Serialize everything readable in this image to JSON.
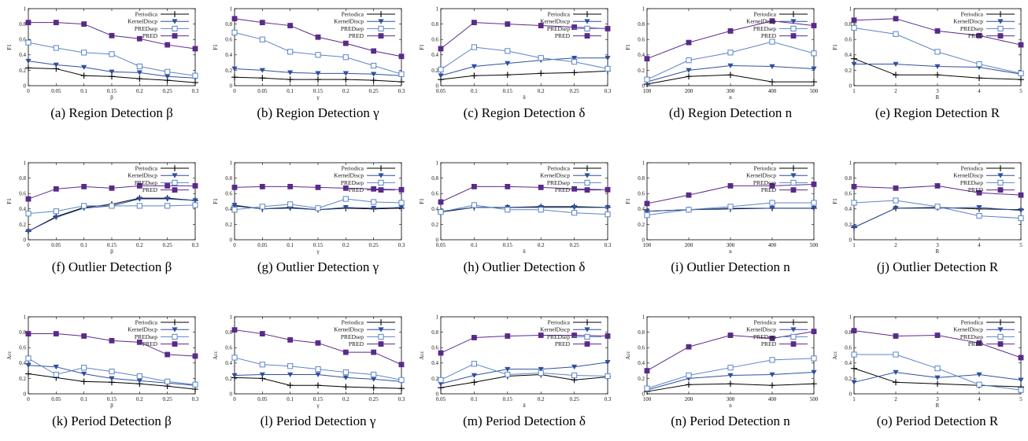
{
  "chart_data": [
    {
      "type": "line",
      "caption": "(a) Region Detection β",
      "xlabel": "β",
      "ylabel": "F1",
      "x": [
        0,
        0.05,
        0.1,
        0.15,
        0.2,
        0.25,
        0.3
      ],
      "xticks": [
        "0",
        "0.05",
        "0.1",
        "0.15",
        "0.2",
        "0.25",
        "0.3"
      ],
      "xlim": [
        0,
        0.3
      ],
      "ylim": [
        0,
        1
      ],
      "series": [
        {
          "name": "Periodica",
          "values": [
            0.23,
            0.22,
            0.13,
            0.12,
            0.09,
            0.07,
            0.04
          ]
        },
        {
          "name": "KernelDiscp",
          "values": [
            0.32,
            0.27,
            0.24,
            0.18,
            0.17,
            0.12,
            0.1
          ]
        },
        {
          "name": "PREDsep",
          "values": [
            0.56,
            0.49,
            0.43,
            0.41,
            0.25,
            0.18,
            0.13
          ]
        },
        {
          "name": "PRED",
          "values": [
            0.82,
            0.82,
            0.8,
            0.65,
            0.61,
            0.53,
            0.48
          ]
        }
      ]
    },
    {
      "type": "line",
      "caption": "(b) Region Detection γ",
      "xlabel": "γ",
      "ylabel": "F1",
      "x": [
        0,
        0.05,
        0.1,
        0.15,
        0.2,
        0.25,
        0.3
      ],
      "xticks": [
        "0",
        "0.05",
        "0.1",
        "0.15",
        "0.2",
        "0.25",
        "0.3"
      ],
      "xlim": [
        0,
        0.3
      ],
      "ylim": [
        0,
        1
      ],
      "series": [
        {
          "name": "Periodica",
          "values": [
            0.11,
            0.1,
            0.08,
            0.08,
            0.08,
            0.07,
            0.05
          ]
        },
        {
          "name": "KernelDiscp",
          "values": [
            0.22,
            0.2,
            0.17,
            0.16,
            0.16,
            0.15,
            0.13
          ]
        },
        {
          "name": "PREDsep",
          "values": [
            0.69,
            0.6,
            0.44,
            0.4,
            0.37,
            0.26,
            0.15
          ]
        },
        {
          "name": "PRED",
          "values": [
            0.87,
            0.82,
            0.78,
            0.63,
            0.55,
            0.45,
            0.38
          ]
        }
      ]
    },
    {
      "type": "line",
      "caption": "(c) Region Detection δ",
      "xlabel": "δ",
      "ylabel": "F1",
      "x": [
        0.05,
        0.1,
        0.15,
        0.2,
        0.25,
        0.3
      ],
      "xticks": [
        "0.05",
        "0.1",
        "0.15",
        "0.2",
        "0.25",
        "0.3"
      ],
      "xlim": [
        0.05,
        0.3
      ],
      "ylim": [
        0,
        1
      ],
      "series": [
        {
          "name": "Periodica",
          "values": [
            0.08,
            0.13,
            0.14,
            0.16,
            0.17,
            0.19
          ]
        },
        {
          "name": "KernelDiscp",
          "values": [
            0.13,
            0.25,
            0.29,
            0.33,
            0.36,
            0.36
          ]
        },
        {
          "name": "PREDsep",
          "values": [
            0.21,
            0.5,
            0.45,
            0.36,
            0.31,
            0.22
          ]
        },
        {
          "name": "PRED",
          "values": [
            0.48,
            0.82,
            0.8,
            0.78,
            0.76,
            0.74
          ]
        }
      ]
    },
    {
      "type": "line",
      "caption": "(d) Region Detection n",
      "xlabel": "n",
      "ylabel": "F1",
      "x": [
        100,
        200,
        300,
        400,
        500
      ],
      "xticks": [
        "100",
        "200",
        "300",
        "400",
        "500"
      ],
      "xlim": [
        100,
        500
      ],
      "ylim": [
        0,
        1
      ],
      "series": [
        {
          "name": "Periodica",
          "values": [
            0.02,
            0.12,
            0.14,
            0.05,
            0.05
          ]
        },
        {
          "name": "KernelDiscp",
          "values": [
            0.05,
            0.2,
            0.26,
            0.25,
            0.22
          ]
        },
        {
          "name": "PREDsep",
          "values": [
            0.08,
            0.33,
            0.43,
            0.57,
            0.42
          ]
        },
        {
          "name": "PRED",
          "values": [
            0.35,
            0.56,
            0.71,
            0.84,
            0.78
          ]
        }
      ]
    },
    {
      "type": "line",
      "caption": "(e) Region Detection R",
      "xlabel": "R",
      "ylabel": "F1",
      "x": [
        1,
        2,
        3,
        4,
        5
      ],
      "xticks": [
        "1",
        "2",
        "3",
        "4",
        "5"
      ],
      "xlim": [
        1,
        5
      ],
      "ylim": [
        0,
        1
      ],
      "series": [
        {
          "name": "Periodica",
          "values": [
            0.35,
            0.14,
            0.14,
            0.1,
            0.08
          ]
        },
        {
          "name": "KernelDiscp",
          "values": [
            0.28,
            0.28,
            0.25,
            0.24,
            0.15
          ]
        },
        {
          "name": "PREDsep",
          "values": [
            0.75,
            0.67,
            0.44,
            0.28,
            0.16
          ]
        },
        {
          "name": "PRED",
          "values": [
            0.85,
            0.87,
            0.71,
            0.65,
            0.53
          ]
        }
      ]
    },
    {
      "type": "line",
      "caption": "(f) Outlier Detection β",
      "xlabel": "β",
      "ylabel": "F1",
      "x": [
        0,
        0.05,
        0.1,
        0.15,
        0.2,
        0.25,
        0.3
      ],
      "xticks": [
        "0",
        "0.05",
        "0.1",
        "0.15",
        "0.2",
        "0.25",
        "0.3"
      ],
      "xlim": [
        0,
        0.3
      ],
      "ylim": [
        0,
        1
      ],
      "series": [
        {
          "name": "Periodica",
          "values": [
            0.11,
            0.3,
            0.42,
            0.46,
            0.54,
            0.54,
            0.51
          ]
        },
        {
          "name": "KernelDiscp",
          "values": [
            0.11,
            0.29,
            0.41,
            0.44,
            0.53,
            0.53,
            0.51
          ]
        },
        {
          "name": "PREDsep",
          "values": [
            0.34,
            0.37,
            0.44,
            0.44,
            0.44,
            0.44,
            0.45
          ]
        },
        {
          "name": "PRED",
          "values": [
            0.53,
            0.66,
            0.69,
            0.67,
            0.7,
            0.7,
            0.7
          ]
        }
      ]
    },
    {
      "type": "line",
      "caption": "(g) Outlier Detection γ",
      "xlabel": "γ",
      "ylabel": "F1",
      "x": [
        0,
        0.05,
        0.1,
        0.15,
        0.2,
        0.25,
        0.3
      ],
      "xticks": [
        "0",
        "0.05",
        "0.1",
        "0.15",
        "0.2",
        "0.25",
        "0.3"
      ],
      "xlim": [
        0,
        0.3
      ],
      "ylim": [
        0,
        1
      ],
      "series": [
        {
          "name": "Periodica",
          "values": [
            0.44,
            0.4,
            0.42,
            0.39,
            0.41,
            0.4,
            0.41
          ]
        },
        {
          "name": "KernelDiscp",
          "values": [
            0.45,
            0.4,
            0.41,
            0.39,
            0.42,
            0.41,
            0.42
          ]
        },
        {
          "name": "PREDsep",
          "values": [
            0.39,
            0.43,
            0.46,
            0.41,
            0.53,
            0.49,
            0.48
          ]
        },
        {
          "name": "PRED",
          "values": [
            0.68,
            0.69,
            0.69,
            0.68,
            0.67,
            0.66,
            0.65
          ]
        }
      ]
    },
    {
      "type": "line",
      "caption": "(h) Outlier Detection δ",
      "xlabel": "δ",
      "ylabel": "F1",
      "x": [
        0.05,
        0.1,
        0.15,
        0.2,
        0.25,
        0.3
      ],
      "xticks": [
        "0.05",
        "0.1",
        "0.15",
        "0.2",
        "0.25",
        "0.3"
      ],
      "xlim": [
        0.05,
        0.3
      ],
      "ylim": [
        0,
        1
      ],
      "series": [
        {
          "name": "Periodica",
          "values": [
            0.36,
            0.42,
            0.42,
            0.43,
            0.43,
            0.42
          ]
        },
        {
          "name": "KernelDiscp",
          "values": [
            0.37,
            0.42,
            0.42,
            0.42,
            0.42,
            0.42
          ]
        },
        {
          "name": "PREDsep",
          "values": [
            0.36,
            0.45,
            0.39,
            0.39,
            0.35,
            0.33
          ]
        },
        {
          "name": "PRED",
          "values": [
            0.49,
            0.69,
            0.69,
            0.68,
            0.66,
            0.65
          ]
        }
      ]
    },
    {
      "type": "line",
      "caption": "(i) Outlier Detection n",
      "xlabel": "n",
      "ylabel": "F1",
      "x": [
        100,
        200,
        300,
        400,
        500
      ],
      "xticks": [
        "100",
        "200",
        "300",
        "400",
        "500"
      ],
      "xlim": [
        100,
        500
      ],
      "ylim": [
        0,
        1
      ],
      "series": [
        {
          "name": "Periodica",
          "values": [
            0.37,
            0.39,
            0.4,
            0.41,
            0.41
          ]
        },
        {
          "name": "KernelDiscp",
          "values": [
            0.37,
            0.39,
            0.41,
            0.41,
            0.41
          ]
        },
        {
          "name": "PREDsep",
          "values": [
            0.32,
            0.39,
            0.43,
            0.48,
            0.48
          ]
        },
        {
          "name": "PRED",
          "values": [
            0.47,
            0.58,
            0.7,
            0.7,
            0.72
          ]
        }
      ]
    },
    {
      "type": "line",
      "caption": "(j) Outlier Detection R",
      "xlabel": "R",
      "ylabel": "F1",
      "x": [
        1,
        2,
        3,
        4,
        5
      ],
      "xticks": [
        "1",
        "2",
        "3",
        "4",
        "5"
      ],
      "xlim": [
        1,
        5
      ],
      "ylim": [
        0,
        1
      ],
      "series": [
        {
          "name": "Periodica",
          "values": [
            0.16,
            0.41,
            0.42,
            0.4,
            0.39
          ]
        },
        {
          "name": "KernelDiscp",
          "values": [
            0.16,
            0.41,
            0.41,
            0.42,
            0.38
          ]
        },
        {
          "name": "PREDsep",
          "values": [
            0.48,
            0.51,
            0.43,
            0.31,
            0.28
          ]
        },
        {
          "name": "PRED",
          "values": [
            0.69,
            0.67,
            0.7,
            0.61,
            0.58
          ]
        }
      ]
    },
    {
      "type": "line",
      "caption": "(k) Period Detection β",
      "xlabel": "β",
      "ylabel": "Acc",
      "x": [
        0,
        0.05,
        0.1,
        0.15,
        0.2,
        0.25,
        0.3
      ],
      "xticks": [
        "0",
        "0.05",
        "0.1",
        "0.15",
        "0.2",
        "0.25",
        "0.3"
      ],
      "xlim": [
        0,
        0.3
      ],
      "ylim": [
        0,
        1
      ],
      "series": [
        {
          "name": "Periodica",
          "values": [
            0.26,
            0.21,
            0.16,
            0.15,
            0.13,
            0.1,
            0.06
          ]
        },
        {
          "name": "KernelDiscp",
          "values": [
            0.37,
            0.35,
            0.26,
            0.2,
            0.17,
            0.14,
            0.11
          ]
        },
        {
          "name": "PREDsep",
          "values": [
            0.46,
            0.25,
            0.34,
            0.29,
            0.23,
            0.16,
            0.12
          ]
        },
        {
          "name": "PRED",
          "values": [
            0.78,
            0.78,
            0.75,
            0.69,
            0.67,
            0.51,
            0.49
          ]
        }
      ]
    },
    {
      "type": "line",
      "caption": "(l) Period Detection γ",
      "xlabel": "γ",
      "ylabel": "Acc",
      "x": [
        0,
        0.05,
        0.1,
        0.15,
        0.2,
        0.25,
        0.3
      ],
      "xticks": [
        "0",
        "0.05",
        "0.1",
        "0.15",
        "0.2",
        "0.25",
        "0.3"
      ],
      "xlim": [
        0,
        0.3
      ],
      "ylim": [
        0,
        1
      ],
      "series": [
        {
          "name": "Periodica",
          "values": [
            0.21,
            0.2,
            0.11,
            0.11,
            0.09,
            0.08,
            0.07
          ]
        },
        {
          "name": "KernelDiscp",
          "values": [
            0.24,
            0.25,
            0.25,
            0.25,
            0.21,
            0.19,
            0.16
          ]
        },
        {
          "name": "PREDsep",
          "values": [
            0.47,
            0.38,
            0.36,
            0.32,
            0.28,
            0.25,
            0.18
          ]
        },
        {
          "name": "PRED",
          "values": [
            0.83,
            0.78,
            0.7,
            0.66,
            0.54,
            0.54,
            0.38
          ]
        }
      ]
    },
    {
      "type": "line",
      "caption": "(m) Period Detection δ",
      "xlabel": "δ",
      "ylabel": "Acc",
      "x": [
        0.05,
        0.1,
        0.15,
        0.2,
        0.25,
        0.3
      ],
      "xticks": [
        "0.05",
        "0.1",
        "0.15",
        "0.2",
        "0.25",
        "0.3"
      ],
      "xlim": [
        0.05,
        0.3
      ],
      "ylim": [
        0,
        1
      ],
      "series": [
        {
          "name": "Periodica",
          "values": [
            0.08,
            0.15,
            0.23,
            0.25,
            0.18,
            0.22
          ]
        },
        {
          "name": "KernelDiscp",
          "values": [
            0.13,
            0.24,
            0.32,
            0.32,
            0.35,
            0.41
          ]
        },
        {
          "name": "PREDsep",
          "values": [
            0.18,
            0.39,
            0.25,
            0.27,
            0.24,
            0.23
          ]
        },
        {
          "name": "PRED",
          "values": [
            0.53,
            0.73,
            0.75,
            0.76,
            0.76,
            0.75
          ]
        }
      ]
    },
    {
      "type": "line",
      "caption": "(n) Period Detection n",
      "xlabel": "n",
      "ylabel": "Acc",
      "x": [
        100,
        200,
        300,
        400,
        500
      ],
      "xticks": [
        "100",
        "200",
        "300",
        "400",
        "500"
      ],
      "xlim": [
        100,
        500
      ],
      "ylim": [
        0,
        1
      ],
      "series": [
        {
          "name": "Periodica",
          "values": [
            0.03,
            0.12,
            0.13,
            0.11,
            0.13
          ]
        },
        {
          "name": "KernelDiscp",
          "values": [
            0.05,
            0.2,
            0.24,
            0.25,
            0.28
          ]
        },
        {
          "name": "PREDsep",
          "values": [
            0.07,
            0.24,
            0.34,
            0.44,
            0.46
          ]
        },
        {
          "name": "PRED",
          "values": [
            0.3,
            0.61,
            0.76,
            0.72,
            0.81
          ]
        }
      ]
    },
    {
      "type": "line",
      "caption": "(o) Period Detection R",
      "xlabel": "R",
      "ylabel": "Acc",
      "x": [
        1,
        2,
        3,
        4,
        5
      ],
      "xticks": [
        "1",
        "2",
        "3",
        "4",
        "5"
      ],
      "xlim": [
        1,
        5
      ],
      "ylim": [
        0,
        1
      ],
      "series": [
        {
          "name": "Periodica",
          "values": [
            0.33,
            0.15,
            0.13,
            0.11,
            0.09
          ]
        },
        {
          "name": "KernelDiscp",
          "values": [
            0.15,
            0.28,
            0.21,
            0.25,
            0.18
          ]
        },
        {
          "name": "PREDsep",
          "values": [
            0.51,
            0.51,
            0.33,
            0.12,
            0.05
          ]
        },
        {
          "name": "PRED",
          "values": [
            0.82,
            0.75,
            0.76,
            0.66,
            0.47
          ]
        }
      ]
    }
  ],
  "yticks": [
    "0",
    "0.2",
    "0.4",
    "0.6",
    "0.8",
    "1"
  ],
  "colors": {
    "Periodica": "#000000",
    "KernelDiscp": "#2f4f9f",
    "PREDsep": "#5b84c8",
    "PRED": "#5a2a8a"
  },
  "markers": {
    "Periodica": "plus",
    "KernelDiscp": "triangle-down",
    "PREDsep": "open-square",
    "PRED": "filled-square"
  }
}
